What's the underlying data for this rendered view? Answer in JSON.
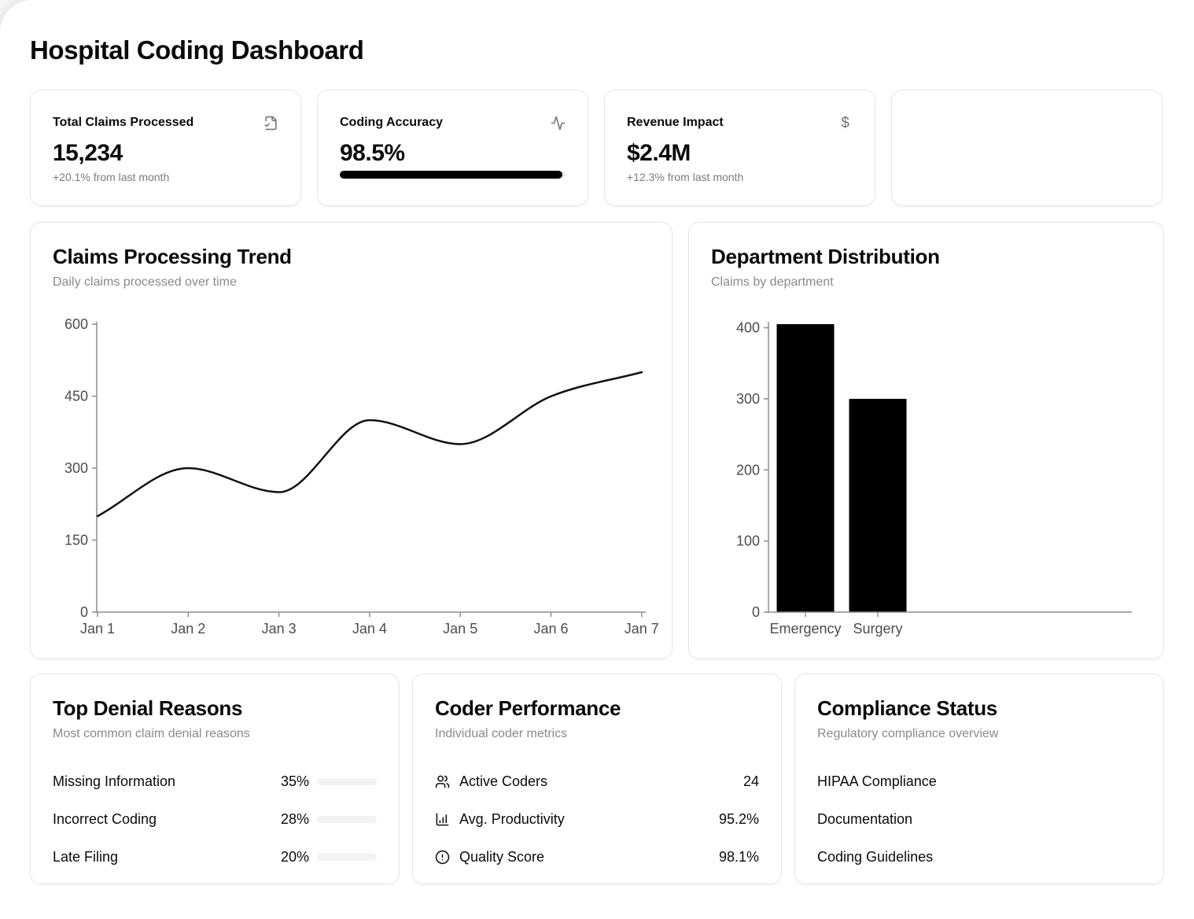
{
  "page": {
    "title": "Hospital Coding Dashboard"
  },
  "stats": {
    "cards": [
      {
        "label": "Total Claims Processed",
        "icon": "file-check-icon",
        "value": "15,234",
        "caption": "+20.1% from last month"
      },
      {
        "label": "Coding Accuracy",
        "icon": "activity-icon",
        "value": "98.5%",
        "progress_pct": 98.5
      },
      {
        "label": "Revenue Impact",
        "icon": "dollar-icon",
        "icon_glyph": "$",
        "value": "$2.4M",
        "caption": "+12.3% from last month"
      }
    ]
  },
  "trend_card": {
    "title": "Claims Processing Trend",
    "subtitle": "Daily claims processed over time"
  },
  "department_card": {
    "title": "Department Distribution",
    "subtitle": "Claims by department"
  },
  "chart_data": [
    {
      "type": "line",
      "title": "Claims Processing Trend",
      "x": [
        "Jan 1",
        "Jan 2",
        "Jan 3",
        "Jan 4",
        "Jan 5",
        "Jan 6",
        "Jan 7"
      ],
      "values": [
        200,
        300,
        250,
        400,
        350,
        450,
        500
      ],
      "yticks": [
        0,
        150,
        300,
        450,
        600
      ],
      "ylim": [
        0,
        600
      ],
      "grid": false,
      "legend": false,
      "line_color": "#111111",
      "curve": "monotone"
    },
    {
      "type": "bar",
      "title": "Department Distribution",
      "categories": [
        "Emergency",
        "Surgery"
      ],
      "values": [
        405,
        300
      ],
      "yticks": [
        0,
        100,
        200,
        300,
        400
      ],
      "ylim": [
        0,
        405
      ],
      "grid": false,
      "legend": false,
      "bar_color": "#000000"
    }
  ],
  "denials": {
    "title": "Top Denial Reasons",
    "subtitle": "Most common claim denial reasons",
    "rows": [
      {
        "label": "Missing Information",
        "pct_label": "35%",
        "pct": 35
      },
      {
        "label": "Incorrect Coding",
        "pct_label": "28%",
        "pct": 28
      },
      {
        "label": "Late Filing",
        "pct_label": "20%",
        "pct": 20
      }
    ]
  },
  "coders": {
    "title": "Coder Performance",
    "subtitle": "Individual coder metrics",
    "rows": [
      {
        "icon": "users-icon",
        "label": "Active Coders",
        "value": "24"
      },
      {
        "icon": "bar-chart-icon",
        "label": "Avg. Productivity",
        "value": "95.2%"
      },
      {
        "icon": "alert-circle-icon",
        "label": "Quality Score",
        "value": "98.1%"
      }
    ]
  },
  "compliance": {
    "title": "Compliance Status",
    "subtitle": "Regulatory compliance overview",
    "rows": [
      {
        "label": "HIPAA Compliance"
      },
      {
        "label": "Documentation"
      },
      {
        "label": "Coding Guidelines"
      }
    ]
  },
  "colors": {
    "accent": "#000000",
    "text": "#0a0a0a",
    "muted": "#8a8a8a",
    "border": "#e5e5e7"
  }
}
